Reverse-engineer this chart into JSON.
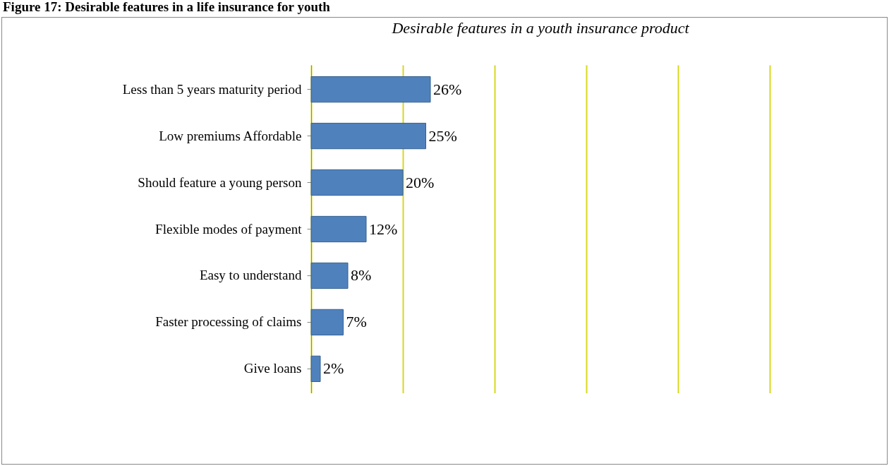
{
  "chart_data": {
    "type": "bar",
    "orientation": "horizontal",
    "title": "Figure 17: Desirable features in a life insurance for youth",
    "subtitle": "Desirable features in a youth insurance product",
    "categories": [
      "Less than 5 years maturity period",
      "Low  premiums Affordable",
      "Should feature a young person",
      "Flexible modes of payment",
      "Easy to understand",
      "Faster processing of claims",
      "Give loans"
    ],
    "values": [
      26,
      25,
      20,
      12,
      8,
      7,
      2
    ],
    "value_labels": [
      "26%",
      "25%",
      "20%",
      "12%",
      "8%",
      "7%",
      "2%"
    ],
    "color": "#4f81bd",
    "xlim": [
      0,
      100
    ],
    "xticks": [
      {
        "value": 0,
        "label": null
      },
      {
        "value": 20,
        "label": null
      },
      {
        "value": 40,
        "label": null
      },
      {
        "value": 60,
        "label": null
      },
      {
        "value": 80,
        "label": null
      },
      {
        "value": 100,
        "label": null
      }
    ],
    "tick_labels": "y",
    "grid": "x"
  }
}
